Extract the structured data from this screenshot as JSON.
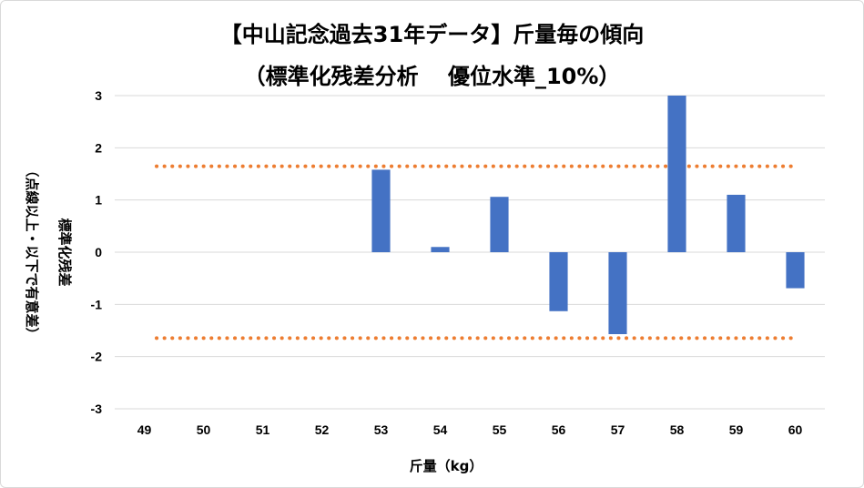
{
  "chart_data": {
    "type": "bar",
    "title": "【中山記念過去31年データ】斤量毎の傾向",
    "subtitle": "（標準化残差分析　 優位水準_10%）",
    "xlabel": "斤量（kg）",
    "ylabel_main": "標準化残差",
    "ylabel_sub": "（点線以上・以下で有意差）",
    "categories": [
      "49",
      "50",
      "51",
      "52",
      "53",
      "54",
      "55",
      "56",
      "57",
      "58",
      "59",
      "60"
    ],
    "values": [
      0,
      0,
      0,
      0,
      1.58,
      0.1,
      1.06,
      -1.13,
      -1.57,
      3.0,
      1.1,
      -0.69
    ],
    "ylim": [
      -3,
      3
    ],
    "yticks": [
      "3",
      "2",
      "1",
      "0",
      "-1",
      "-2",
      "-3"
    ],
    "thresholds": [
      1.645,
      -1.645
    ],
    "bar_color": "#4472c4",
    "threshold_color": "#ed7d31",
    "grid": true
  }
}
